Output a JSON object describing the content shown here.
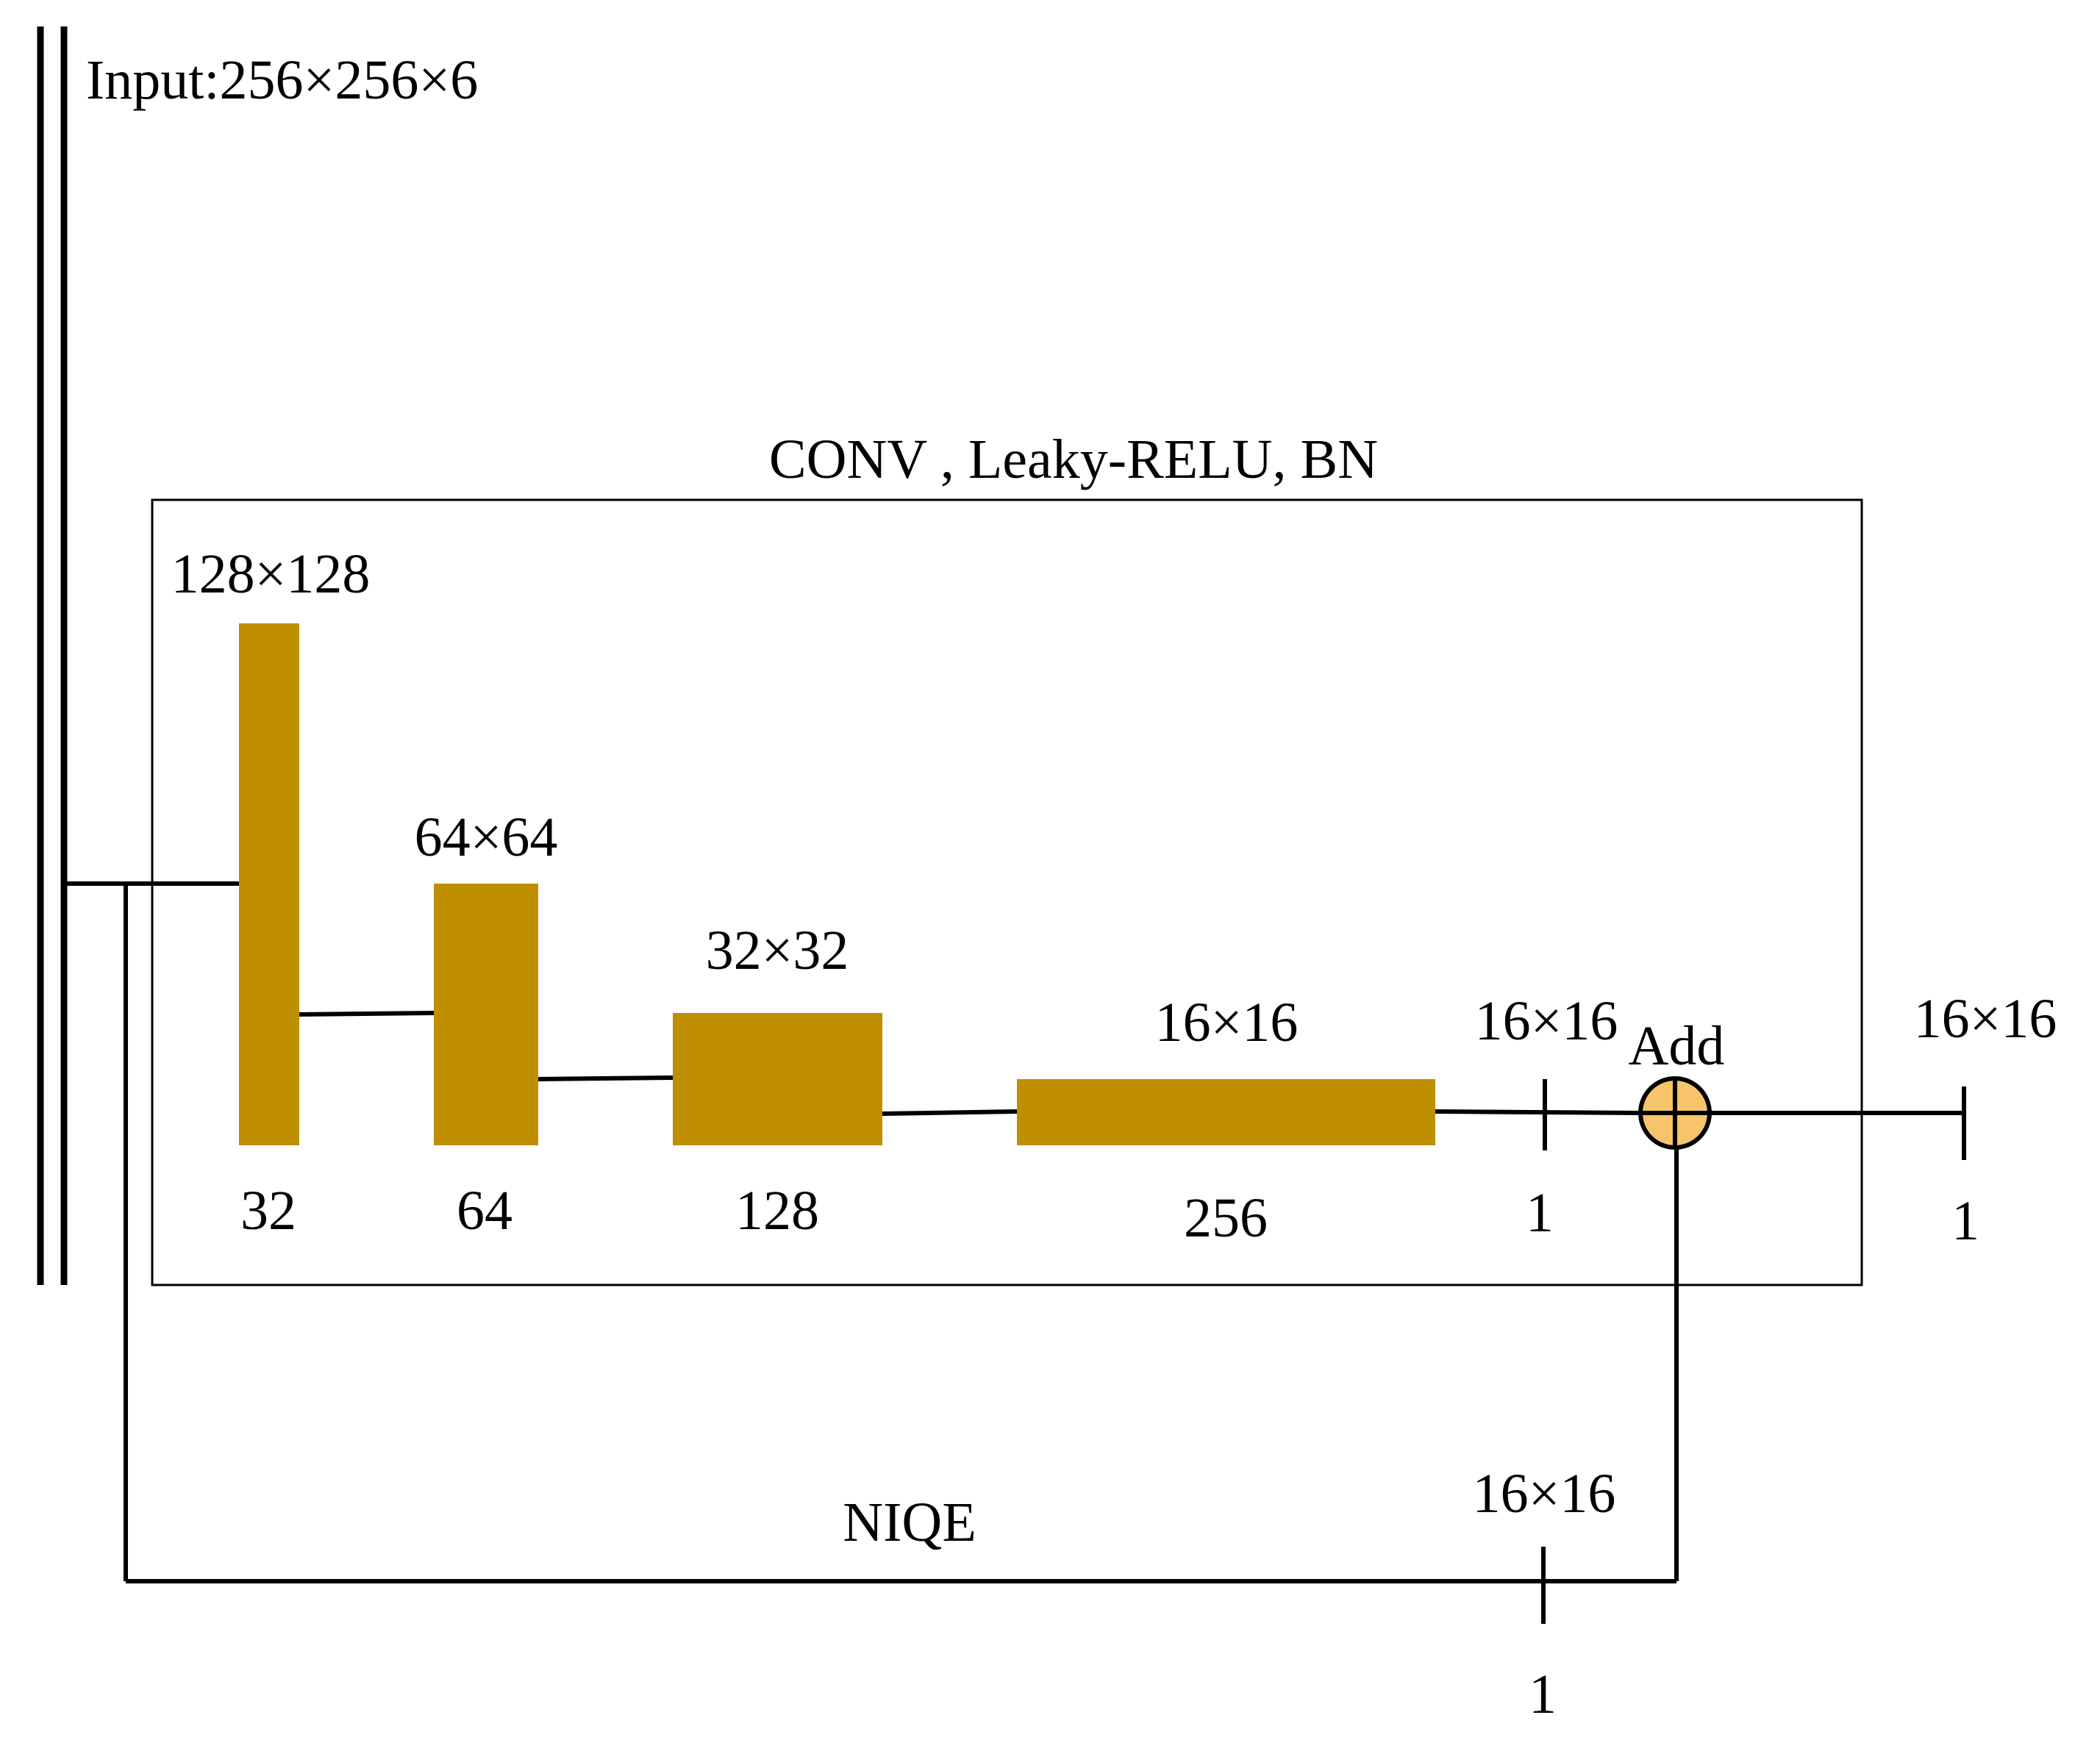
{
  "input_label": "Input:256×256×6",
  "conv_label": "CONV , Leaky-RELU, BN",
  "blocks": [
    {
      "size": "128×128",
      "channels": "32"
    },
    {
      "size": "64×64",
      "channels": "64"
    },
    {
      "size": "32×32",
      "channels": "128"
    },
    {
      "size": "16×16",
      "channels": "256"
    }
  ],
  "branch_output": {
    "size": "16×16",
    "channels": "1"
  },
  "add_label": "Add",
  "final_output": {
    "size": "16×16",
    "channels": "1"
  },
  "niqe": {
    "label": "NIQE",
    "size": "16×16",
    "channels": "1"
  },
  "colors": {
    "block_fill": "#BF8F00",
    "add_fill": "#F7C46B",
    "line": "#000000"
  }
}
